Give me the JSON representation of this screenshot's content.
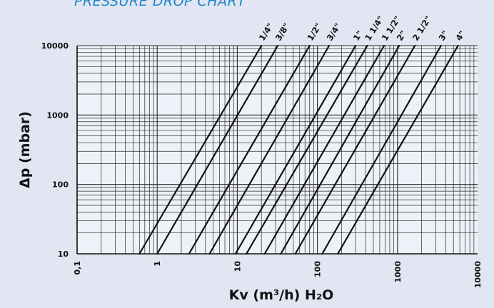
{
  "chart_data": {
    "type": "line",
    "title": "PRESSURE DROP CHART",
    "xlabel": "Kv (m³/h) H₂O",
    "ylabel": "Δp (mbar)",
    "x_scale": "log",
    "y_scale": "log",
    "xlim": [
      0.1,
      10000
    ],
    "ylim": [
      10,
      10000
    ],
    "grid": true,
    "x_tick_labels": [
      "0,1",
      "1",
      "10",
      "100",
      "1000",
      "10000"
    ],
    "y_tick_labels": [
      "10",
      "100",
      "1000",
      "10000"
    ],
    "series": [
      {
        "name": "1/4\"",
        "x": [
          0.6,
          20
        ],
        "y": [
          10,
          10000
        ]
      },
      {
        "name": "3/8\"",
        "x": [
          1.0,
          32
        ],
        "y": [
          10,
          10000
        ]
      },
      {
        "name": "1/2\"",
        "x": [
          2.5,
          80
        ],
        "y": [
          10,
          10000
        ]
      },
      {
        "name": "3/4\"",
        "x": [
          4.5,
          140
        ],
        "y": [
          10,
          10000
        ]
      },
      {
        "name": "1\"",
        "x": [
          9.5,
          300
        ],
        "y": [
          10,
          10000
        ]
      },
      {
        "name": "1 1/4\"",
        "x": [
          13,
          420
        ],
        "y": [
          10,
          10000
        ]
      },
      {
        "name": "1 1/2\"",
        "x": [
          22,
          680
        ],
        "y": [
          10,
          10000
        ]
      },
      {
        "name": "2\"",
        "x": [
          35,
          1050
        ],
        "y": [
          10,
          10000
        ]
      },
      {
        "name": "2 1/2\"",
        "x": [
          53,
          1650
        ],
        "y": [
          10,
          10000
        ]
      },
      {
        "name": "3\"",
        "x": [
          115,
          3500
        ],
        "y": [
          10,
          10000
        ]
      },
      {
        "name": "4\"",
        "x": [
          180,
          5700
        ],
        "y": [
          10,
          10000
        ]
      }
    ]
  }
}
